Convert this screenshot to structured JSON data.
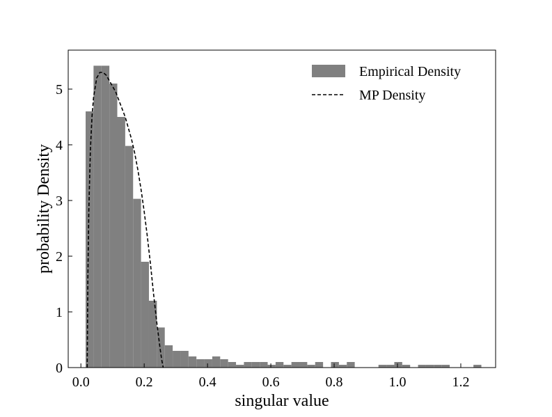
{
  "chart_data": {
    "type": "histogram",
    "xlabel": "singular value",
    "ylabel": "probability Density",
    "xlim": [
      -0.04,
      1.31
    ],
    "ylim": [
      0,
      5.7
    ],
    "x_ticks": [
      {
        "value": 0.0,
        "label": "0.0"
      },
      {
        "value": 0.2,
        "label": "0.2"
      },
      {
        "value": 0.4,
        "label": "0.4"
      },
      {
        "value": 0.6,
        "label": "0.6"
      },
      {
        "value": 0.8,
        "label": "0.8"
      },
      {
        "value": 1.0,
        "label": "1.0"
      },
      {
        "value": 1.2,
        "label": "1.2"
      }
    ],
    "y_ticks": [
      {
        "value": 0,
        "label": "0"
      },
      {
        "value": 1,
        "label": "1"
      },
      {
        "value": 2,
        "label": "2"
      },
      {
        "value": 3,
        "label": "3"
      },
      {
        "value": 4,
        "label": "4"
      },
      {
        "value": 5,
        "label": "5"
      }
    ],
    "legend_position": "top-right",
    "series": [
      {
        "name": "Empirical Density",
        "kind": "histogram",
        "color": "#808080",
        "bin_width": 0.025,
        "bins_start": [
          0.015,
          0.04,
          0.065,
          0.09,
          0.115,
          0.14,
          0.165,
          0.19,
          0.215,
          0.24,
          0.265,
          0.29,
          0.315,
          0.34,
          0.365,
          0.39,
          0.415,
          0.44,
          0.465,
          0.49,
          0.515,
          0.54,
          0.565,
          0.59,
          0.615,
          0.64,
          0.665,
          0.69,
          0.715,
          0.74,
          0.765,
          0.79,
          0.815,
          0.84,
          0.865,
          0.89,
          0.915,
          0.94,
          0.965,
          0.99,
          1.015,
          1.04,
          1.065,
          1.09,
          1.115,
          1.14,
          1.165,
          1.19,
          1.215,
          1.24
        ],
        "densities": [
          4.6,
          5.42,
          5.42,
          5.1,
          4.5,
          3.98,
          3.03,
          1.9,
          1.2,
          0.72,
          0.4,
          0.3,
          0.3,
          0.2,
          0.15,
          0.15,
          0.2,
          0.15,
          0.1,
          0.05,
          0.1,
          0.1,
          0.1,
          0.05,
          0.1,
          0.05,
          0.1,
          0.1,
          0.05,
          0.1,
          0.0,
          0.1,
          0.05,
          0.1,
          0.0,
          0.0,
          0.0,
          0.05,
          0.05,
          0.1,
          0.05,
          0.0,
          0.05,
          0.05,
          0.05,
          0.05,
          0.0,
          0.0,
          0.0,
          0.05
        ]
      },
      {
        "name": "MP Density",
        "kind": "line",
        "style": "dashed",
        "color": "#000000",
        "x_min": 0.02,
        "x_max": 0.26,
        "x": [
          0.02,
          0.022,
          0.025,
          0.03,
          0.035,
          0.04,
          0.05,
          0.06,
          0.07,
          0.08,
          0.09,
          0.1,
          0.11,
          0.12,
          0.13,
          0.14,
          0.15,
          0.16,
          0.17,
          0.18,
          0.19,
          0.2,
          0.21,
          0.22,
          0.23,
          0.24,
          0.25,
          0.255,
          0.26
        ],
        "y": [
          0.0,
          1.6,
          2.8,
          3.9,
          4.5,
          4.85,
          5.2,
          5.3,
          5.3,
          5.25,
          5.15,
          5.05,
          4.95,
          4.8,
          4.65,
          4.5,
          4.3,
          4.1,
          3.85,
          3.55,
          3.2,
          2.8,
          2.35,
          1.85,
          1.3,
          0.8,
          0.35,
          0.15,
          0.0
        ]
      }
    ]
  }
}
